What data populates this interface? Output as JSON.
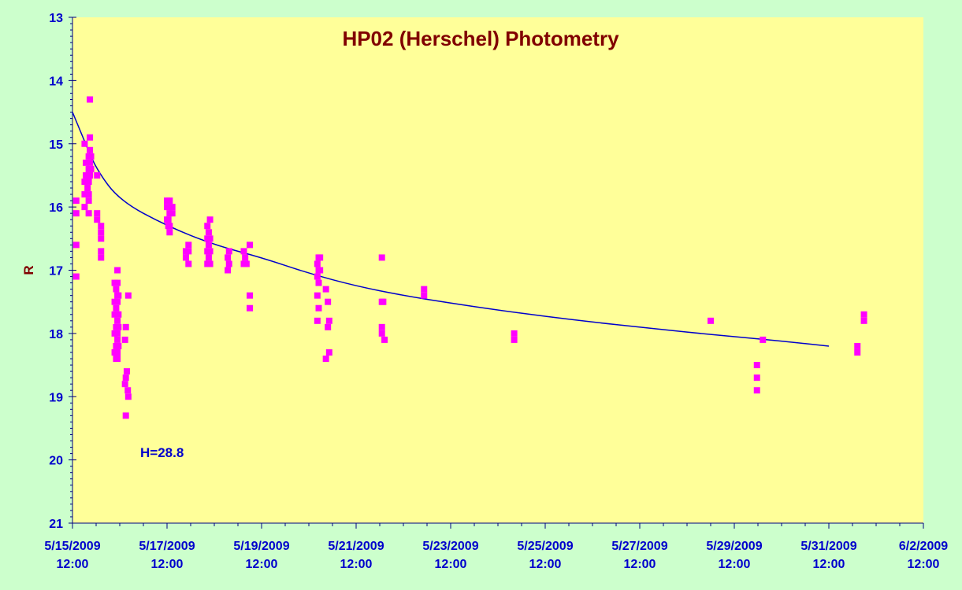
{
  "chart_data": {
    "type": "scatter",
    "title": "HP02 (Herschel) Photometry",
    "ylabel": "R",
    "xlabel": "",
    "annotation": "H=28.8",
    "y_inverted": true,
    "ylim": [
      21,
      13
    ],
    "y_ticks": [
      13,
      14,
      15,
      16,
      17,
      18,
      19,
      20,
      21
    ],
    "x_range": [
      "2009-05-15 12:00",
      "2009-06-02 12:00"
    ],
    "x_tick_labels": [
      [
        "5/15/2009",
        "12:00"
      ],
      [
        "5/17/2009",
        "12:00"
      ],
      [
        "5/19/2009",
        "12:00"
      ],
      [
        "5/21/2009",
        "12:00"
      ],
      [
        "5/23/2009",
        "12:00"
      ],
      [
        "5/25/2009",
        "12:00"
      ],
      [
        "5/27/2009",
        "12:00"
      ],
      [
        "5/29/2009",
        "12:00"
      ],
      [
        "5/31/2009",
        "12:00"
      ],
      [
        "6/2/2009",
        "12:00"
      ]
    ],
    "grid": false,
    "colors": {
      "background": "#ccffcc",
      "plot_area": "#ffff99",
      "points": "#ff00ff",
      "fit_line": "#0000cc",
      "title": "#800000",
      "axis_text": "#0000cc"
    },
    "series": [
      {
        "marker": "square",
        "points": [
          [
            "2009-05-15 13:55",
            15.9
          ],
          [
            "2009-05-15 13:55",
            16.1
          ],
          [
            "2009-05-15 13:55",
            16.6
          ],
          [
            "2009-05-15 13:55",
            17.1
          ],
          [
            "2009-05-15 18:10",
            15.0
          ],
          [
            "2009-05-15 18:10",
            15.6
          ],
          [
            "2009-05-15 18:10",
            15.8
          ],
          [
            "2009-05-15 18:10",
            16.0
          ],
          [
            "2009-05-15 18:50",
            15.3
          ],
          [
            "2009-05-15 18:50",
            15.5
          ],
          [
            "2009-05-15 19:40",
            15.5
          ],
          [
            "2009-05-15 19:40",
            15.7
          ],
          [
            "2009-05-15 20:15",
            15.2
          ],
          [
            "2009-05-15 20:15",
            15.4
          ],
          [
            "2009-05-15 20:15",
            15.6
          ],
          [
            "2009-05-15 20:15",
            15.8
          ],
          [
            "2009-05-15 20:15",
            15.9
          ],
          [
            "2009-05-15 20:15",
            16.1
          ],
          [
            "2009-05-15 20:50",
            14.3
          ],
          [
            "2009-05-15 20:50",
            14.9
          ],
          [
            "2009-05-15 20:50",
            15.1
          ],
          [
            "2009-05-15 20:50",
            15.3
          ],
          [
            "2009-05-15 20:50",
            15.5
          ],
          [
            "2009-05-15 21:25",
            15.2
          ],
          [
            "2009-05-15 21:25",
            15.4
          ],
          [
            "2009-05-16 00:30",
            15.5
          ],
          [
            "2009-05-16 00:30",
            16.1
          ],
          [
            "2009-05-16 00:30",
            16.2
          ],
          [
            "2009-05-16 02:30",
            16.3
          ],
          [
            "2009-05-16 02:30",
            16.4
          ],
          [
            "2009-05-16 02:30",
            16.5
          ],
          [
            "2009-05-16 02:30",
            16.7
          ],
          [
            "2009-05-16 02:30",
            16.8
          ],
          [
            "2009-05-16 09:25",
            17.2
          ],
          [
            "2009-05-16 09:25",
            17.5
          ],
          [
            "2009-05-16 09:25",
            17.7
          ],
          [
            "2009-05-16 09:25",
            18.0
          ],
          [
            "2009-05-16 09:25",
            18.3
          ],
          [
            "2009-05-16 10:10",
            17.3
          ],
          [
            "2009-05-16 10:10",
            17.6
          ],
          [
            "2009-05-16 10:10",
            17.9
          ],
          [
            "2009-05-16 10:10",
            18.2
          ],
          [
            "2009-05-16 10:10",
            18.4
          ],
          [
            "2009-05-16 10:50",
            17.0
          ],
          [
            "2009-05-16 10:50",
            17.2
          ],
          [
            "2009-05-16 10:50",
            17.4
          ],
          [
            "2009-05-16 10:50",
            17.5
          ],
          [
            "2009-05-16 10:50",
            17.7
          ],
          [
            "2009-05-16 10:50",
            17.8
          ],
          [
            "2009-05-16 10:50",
            18.0
          ],
          [
            "2009-05-16 10:50",
            18.1
          ],
          [
            "2009-05-16 10:50",
            18.3
          ],
          [
            "2009-05-16 10:50",
            18.4
          ],
          [
            "2009-05-16 11:20",
            17.4
          ],
          [
            "2009-05-16 11:20",
            17.7
          ],
          [
            "2009-05-16 11:20",
            17.9
          ],
          [
            "2009-05-16 11:20",
            18.2
          ],
          [
            "2009-05-16 14:40",
            18.1
          ],
          [
            "2009-05-16 14:40",
            18.8
          ],
          [
            "2009-05-16 15:05",
            17.9
          ],
          [
            "2009-05-16 15:05",
            18.7
          ],
          [
            "2009-05-16 15:05",
            19.3
          ],
          [
            "2009-05-16 15:35",
            18.6
          ],
          [
            "2009-05-16 16:05",
            18.9
          ],
          [
            "2009-05-16 16:20",
            19.0
          ],
          [
            "2009-05-16 16:20",
            17.4
          ],
          [
            "2009-05-17 12:00",
            15.9
          ],
          [
            "2009-05-17 12:00",
            16.0
          ],
          [
            "2009-05-17 12:00",
            16.2
          ],
          [
            "2009-05-17 12:40",
            16.0
          ],
          [
            "2009-05-17 12:40",
            16.2
          ],
          [
            "2009-05-17 12:40",
            16.3
          ],
          [
            "2009-05-17 13:20",
            15.9
          ],
          [
            "2009-05-17 13:20",
            16.1
          ],
          [
            "2009-05-17 13:20",
            16.3
          ],
          [
            "2009-05-17 13:20",
            16.4
          ],
          [
            "2009-05-17 14:40",
            16.0
          ],
          [
            "2009-05-17 14:40",
            16.1
          ],
          [
            "2009-05-17 21:35",
            16.7
          ],
          [
            "2009-05-17 21:35",
            16.8
          ],
          [
            "2009-05-17 22:55",
            16.6
          ],
          [
            "2009-05-17 22:55",
            16.7
          ],
          [
            "2009-05-17 22:55",
            16.9
          ],
          [
            "2009-05-18 08:30",
            16.3
          ],
          [
            "2009-05-18 08:30",
            16.5
          ],
          [
            "2009-05-18 08:30",
            16.7
          ],
          [
            "2009-05-18 08:30",
            16.9
          ],
          [
            "2009-05-18 09:10",
            16.4
          ],
          [
            "2009-05-18 09:10",
            16.6
          ],
          [
            "2009-05-18 09:10",
            16.8
          ],
          [
            "2009-05-18 09:50",
            16.2
          ],
          [
            "2009-05-18 09:50",
            16.5
          ],
          [
            "2009-05-18 09:50",
            16.7
          ],
          [
            "2009-05-18 09:50",
            16.9
          ],
          [
            "2009-05-18 18:50",
            16.8
          ],
          [
            "2009-05-18 18:50",
            17.0
          ],
          [
            "2009-05-18 19:30",
            16.7
          ],
          [
            "2009-05-18 19:30",
            16.9
          ],
          [
            "2009-05-19 03:00",
            16.7
          ],
          [
            "2009-05-19 03:00",
            16.9
          ],
          [
            "2009-05-19 03:40",
            16.8
          ],
          [
            "2009-05-19 04:20",
            16.9
          ],
          [
            "2009-05-19 06:00",
            16.6
          ],
          [
            "2009-05-19 06:00",
            17.4
          ],
          [
            "2009-05-19 06:00",
            17.6
          ],
          [
            "2009-05-20 16:20",
            16.9
          ],
          [
            "2009-05-20 16:20",
            17.1
          ],
          [
            "2009-05-20 16:20",
            17.4
          ],
          [
            "2009-05-20 16:20",
            17.8
          ],
          [
            "2009-05-20 17:00",
            16.8
          ],
          [
            "2009-05-20 17:00",
            17.0
          ],
          [
            "2009-05-20 17:00",
            17.2
          ],
          [
            "2009-05-20 17:00",
            17.6
          ],
          [
            "2009-05-20 17:40",
            16.8
          ],
          [
            "2009-05-20 17:40",
            17.0
          ],
          [
            "2009-05-20 20:40",
            17.3
          ],
          [
            "2009-05-20 20:40",
            18.4
          ],
          [
            "2009-05-20 21:40",
            17.5
          ],
          [
            "2009-05-20 21:40",
            17.9
          ],
          [
            "2009-05-20 22:20",
            17.8
          ],
          [
            "2009-05-20 22:20",
            18.3
          ],
          [
            "2009-05-22 01:05",
            16.8
          ],
          [
            "2009-05-22 01:05",
            17.5
          ],
          [
            "2009-05-22 01:05",
            17.9
          ],
          [
            "2009-05-22 01:05",
            18.0
          ],
          [
            "2009-05-22 01:45",
            17.5
          ],
          [
            "2009-05-22 02:25",
            18.1
          ],
          [
            "2009-05-22 22:30",
            17.3
          ],
          [
            "2009-05-22 22:30",
            17.4
          ],
          [
            "2009-05-24 20:15",
            18.0
          ],
          [
            "2009-05-24 20:15",
            18.1
          ],
          [
            "2009-05-29 00:00",
            17.8
          ],
          [
            "2009-05-29 23:30",
            18.5
          ],
          [
            "2009-05-29 23:30",
            18.7
          ],
          [
            "2009-05-29 23:30",
            18.9
          ],
          [
            "2009-05-30 02:30",
            18.1
          ],
          [
            "2009-06-01 02:30",
            18.2
          ],
          [
            "2009-06-01 02:30",
            18.3
          ],
          [
            "2009-06-01 05:50",
            17.7
          ],
          [
            "2009-06-01 05:50",
            17.8
          ]
        ]
      }
    ],
    "fit": {
      "type": "line",
      "x_start": "2009-05-15 12:00",
      "x_end": "2009-05-31 12:00",
      "points": [
        [
          "2009-05-15 12:00",
          14.5
        ],
        [
          "2009-05-15 17:20",
          14.9
        ],
        [
          "2009-05-16 00:00",
          15.4
        ],
        [
          "2009-05-16 12:00",
          15.9
        ],
        [
          "2009-05-17 12:00",
          16.3
        ],
        [
          "2009-05-18 12:00",
          16.6
        ],
        [
          "2009-05-19 12:00",
          16.8
        ],
        [
          "2009-05-20 12:00",
          17.05
        ],
        [
          "2009-05-21 12:00",
          17.25
        ],
        [
          "2009-05-22 12:00",
          17.4
        ],
        [
          "2009-05-23 12:00",
          17.52
        ],
        [
          "2009-05-24 12:00",
          17.63
        ],
        [
          "2009-05-25 12:00",
          17.73
        ],
        [
          "2009-05-26 12:00",
          17.82
        ],
        [
          "2009-05-27 12:00",
          17.9
        ],
        [
          "2009-05-28 12:00",
          17.98
        ],
        [
          "2009-05-29 12:00",
          18.05
        ],
        [
          "2009-05-30 12:00",
          18.12
        ],
        [
          "2009-05-31 12:00",
          18.2
        ]
      ]
    }
  }
}
